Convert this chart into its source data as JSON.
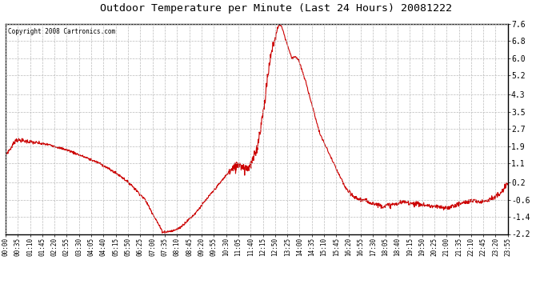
{
  "title": "Outdoor Temperature per Minute (Last 24 Hours) 20081222",
  "copyright": "Copyright 2008 Cartronics.com",
  "line_color": "#cc0000",
  "bg_color": "#ffffff",
  "grid_color": "#bbbbbb",
  "yticks": [
    7.6,
    6.8,
    6.0,
    5.2,
    4.3,
    3.5,
    2.7,
    1.9,
    1.1,
    0.2,
    -0.6,
    -1.4,
    -2.2
  ],
  "ymin": -2.2,
  "ymax": 7.6,
  "xtick_labels": [
    "00:00",
    "00:35",
    "01:10",
    "01:45",
    "02:20",
    "02:55",
    "03:30",
    "04:05",
    "04:40",
    "05:15",
    "05:50",
    "06:25",
    "07:00",
    "07:35",
    "08:10",
    "08:45",
    "09:20",
    "09:55",
    "10:30",
    "11:05",
    "11:40",
    "12:15",
    "12:50",
    "13:25",
    "14:00",
    "14:35",
    "15:10",
    "15:45",
    "16:20",
    "16:55",
    "17:30",
    "18:05",
    "18:40",
    "19:15",
    "19:50",
    "20:25",
    "21:00",
    "21:35",
    "22:10",
    "22:45",
    "23:20",
    "23:55"
  ],
  "keypoints_minutes": [
    0,
    15,
    30,
    50,
    70,
    90,
    110,
    130,
    150,
    180,
    210,
    240,
    270,
    300,
    330,
    360,
    400,
    430,
    450,
    460,
    480,
    500,
    520,
    540,
    560,
    570,
    580,
    590,
    600,
    610,
    620,
    630,
    640,
    650,
    660,
    665,
    670,
    675,
    680,
    685,
    690,
    695,
    700,
    705,
    710,
    715,
    720,
    725,
    730,
    735,
    740,
    745,
    750,
    755,
    760,
    765,
    770,
    775,
    780,
    785,
    790,
    795,
    800,
    810,
    820,
    830,
    840,
    850,
    860,
    870,
    880,
    890,
    900,
    920,
    940,
    960,
    980,
    1000,
    1020,
    1040,
    1060,
    1080,
    1100,
    1120,
    1140,
    1160,
    1180,
    1200,
    1220,
    1240,
    1260,
    1280,
    1300,
    1320,
    1340,
    1360,
    1380,
    1400,
    1420,
    1439
  ],
  "keypoints_temps": [
    1.5,
    1.8,
    2.2,
    2.15,
    2.1,
    2.05,
    2.0,
    1.95,
    1.85,
    1.7,
    1.5,
    1.3,
    1.1,
    0.8,
    0.5,
    0.1,
    -0.6,
    -1.5,
    -2.1,
    -2.1,
    -2.05,
    -1.9,
    -1.6,
    -1.3,
    -0.9,
    -0.7,
    -0.5,
    -0.3,
    -0.1,
    0.1,
    0.3,
    0.5,
    0.7,
    0.8,
    0.9,
    1.05,
    1.1,
    1.0,
    0.95,
    0.9,
    0.85,
    0.9,
    1.0,
    1.1,
    1.3,
    1.5,
    1.8,
    2.2,
    2.7,
    3.2,
    3.7,
    4.3,
    5.0,
    5.6,
    6.1,
    6.5,
    6.8,
    7.1,
    7.4,
    7.6,
    7.5,
    7.3,
    7.0,
    6.5,
    6.0,
    6.1,
    5.9,
    5.4,
    4.9,
    4.3,
    3.7,
    3.1,
    2.5,
    1.8,
    1.1,
    0.4,
    -0.2,
    -0.5,
    -0.6,
    -0.7,
    -0.8,
    -0.9,
    -0.85,
    -0.8,
    -0.7,
    -0.75,
    -0.8,
    -0.85,
    -0.9,
    -0.95,
    -1.0,
    -0.9,
    -0.8,
    -0.7,
    -0.65,
    -0.7,
    -0.6,
    -0.5,
    -0.3,
    0.2
  ]
}
